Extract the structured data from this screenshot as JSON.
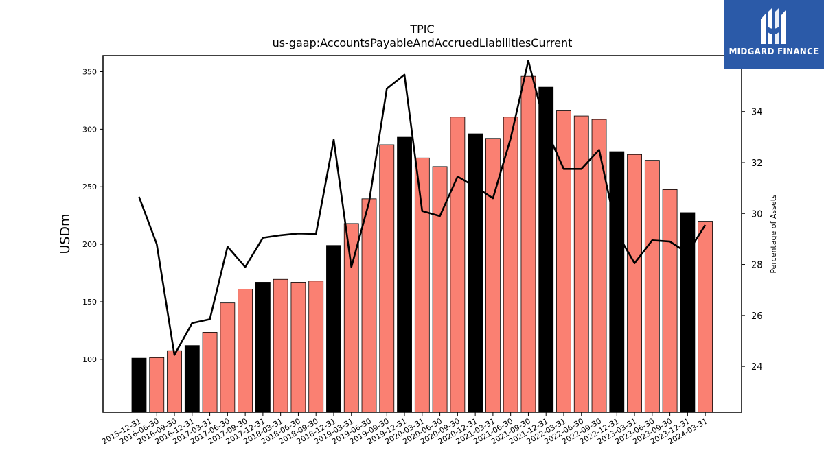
{
  "chart_data": {
    "type": "bar",
    "title": "TPIC",
    "subtitle": "us-gaap:AccountsPayableAndAccruedLiabilitiesCurrent",
    "ylabel": "USDm",
    "y2label": "Percentage of Assets",
    "ylim": [
      54,
      364
    ],
    "y2lim": [
      22.2,
      36.2
    ],
    "yticks": [
      100,
      150,
      200,
      250,
      300,
      350
    ],
    "y2ticks": [
      24,
      26,
      28,
      30,
      32,
      34,
      36
    ],
    "categories": [
      "2015-12-31",
      "2016-06-30",
      "2016-09-30",
      "2016-12-31",
      "2017-03-31",
      "2017-06-30",
      "2017-09-30",
      "2017-12-31",
      "2018-03-31",
      "2018-06-30",
      "2018-09-30",
      "2018-12-31",
      "2019-03-31",
      "2019-06-30",
      "2019-09-30",
      "2019-12-31",
      "2020-03-31",
      "2020-06-30",
      "2020-09-30",
      "2020-12-31",
      "2021-03-31",
      "2021-06-30",
      "2021-09-30",
      "2021-12-31",
      "2022-03-31",
      "2022-06-30",
      "2022-09-30",
      "2022-12-31",
      "2023-03-31",
      "2023-06-30",
      "2023-09-30",
      "2023-12-31",
      "2024-03-31"
    ],
    "series": [
      {
        "type": "bar",
        "values": [
          101,
          101.5,
          107.5,
          112,
          123.5,
          149,
          161,
          167,
          169.5,
          167,
          168,
          199,
          218,
          239.5,
          286.5,
          293,
          275,
          267.5,
          310.5,
          296,
          292,
          310.5,
          346,
          336.5,
          316,
          311.5,
          308.5,
          280.5,
          278,
          273,
          247.5,
          227.5,
          220
        ]
      },
      {
        "type": "line",
        "axis": "right",
        "values": [
          30.65,
          28.8,
          24.45,
          25.7,
          25.85,
          28.7,
          27.9,
          29.05,
          29.15,
          29.22,
          29.2,
          32.9,
          27.9,
          30.45,
          34.9,
          35.45,
          30.1,
          29.9,
          31.45,
          31.05,
          30.6,
          32.95,
          36.0,
          33.3,
          31.75,
          31.75,
          32.5,
          29.25,
          28.05,
          28.95,
          28.9,
          28.45,
          29.55
        ]
      }
    ],
    "colors": {
      "bar": "#fa8072",
      "bar_year_end": "#000000",
      "line": "#000000",
      "edge": "#000000"
    },
    "legend": "none",
    "grid": false
  },
  "logo": {
    "text": "MIDGARD FINANCE",
    "background": "#2b5aa8"
  }
}
